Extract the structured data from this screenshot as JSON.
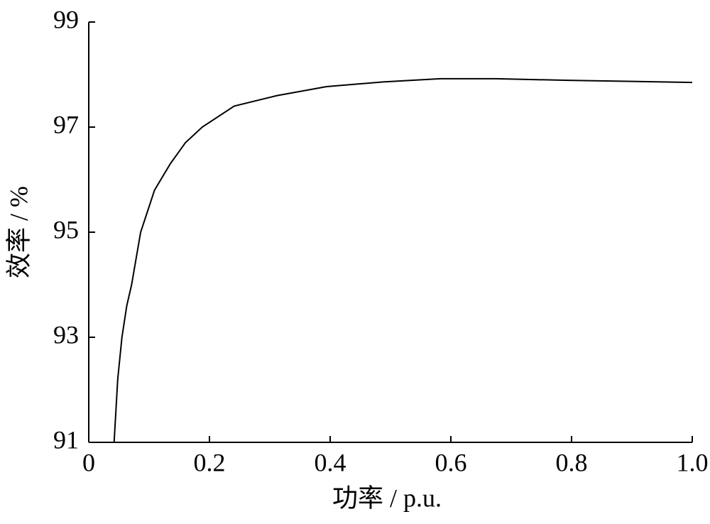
{
  "chart_data": {
    "type": "line",
    "x_label": "功率 / p.u.",
    "y_label": "效率 / %",
    "x": [
      0.042,
      0.048,
      0.055,
      0.063,
      0.071,
      0.086,
      0.109,
      0.135,
      0.16,
      0.188,
      0.241,
      0.312,
      0.394,
      0.488,
      0.582,
      0.676,
      0.794,
      0.9,
      1.0
    ],
    "values": [
      91.0,
      92.2,
      93.0,
      93.6,
      94.0,
      95.0,
      95.8,
      96.3,
      96.7,
      97.0,
      97.4,
      97.6,
      97.77,
      97.86,
      97.92,
      97.92,
      97.89,
      97.87,
      97.85
    ],
    "color": "#000000",
    "xlim": [
      0,
      1
    ],
    "ylim": [
      91,
      99
    ],
    "xticks": [
      0,
      0.2,
      0.4,
      0.6,
      0.8,
      {
        "value": 1,
        "label": "1.0"
      }
    ],
    "yticks": [
      91,
      93,
      95,
      97,
      99
    ],
    "grid": false
  }
}
